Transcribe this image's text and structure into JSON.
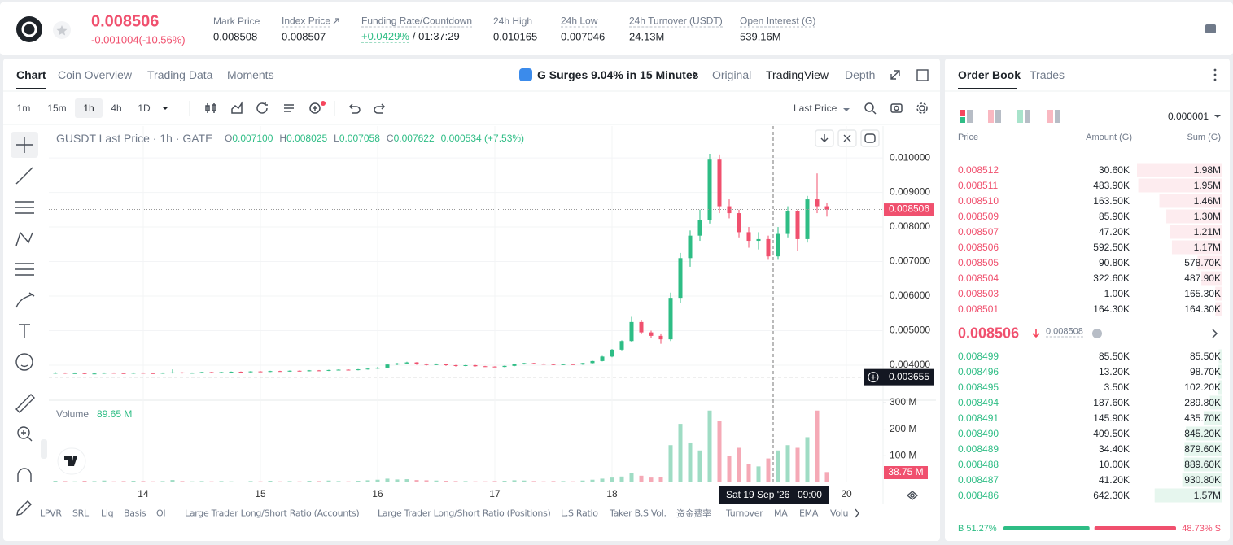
{
  "header": {
    "price": "0.008506",
    "change": "-0.001004(-10.56%)",
    "stats": [
      {
        "label": "Mark Price",
        "value": "0.008508"
      },
      {
        "label": "Index Price",
        "value": "0.008507"
      },
      {
        "label": "Funding Rate/Countdown",
        "value": "+0.0429%",
        "countdown": "/ 01:37:29"
      },
      {
        "label": "24h High",
        "value": "0.010165"
      },
      {
        "label": "24h Low",
        "value": "0.007046"
      },
      {
        "label": "24h Turnover (USDT)",
        "value": "24.13M"
      },
      {
        "label": "Open Interest (G)",
        "value": "539.16M"
      }
    ]
  },
  "chart_tabs": [
    "Chart",
    "Coin Overview",
    "Trading Data",
    "Moments"
  ],
  "news": "G Surges 9.04% in 15 Minutes",
  "view_tabs": [
    "Original",
    "TradingView",
    "Depth"
  ],
  "intervals": [
    "1m",
    "15m",
    "1h",
    "4h",
    "1D"
  ],
  "price_type": "Last Price",
  "legend": {
    "symbol": "GUSDT Last Price · 1h · GATE",
    "ohlc": [
      {
        "label": "O",
        "value": "0.007100"
      },
      {
        "label": "H",
        "value": "0.008025"
      },
      {
        "label": "L",
        "value": "0.007058"
      },
      {
        "label": "C",
        "value": "0.007622"
      }
    ],
    "change": "0.000534 (+7.53%)"
  },
  "volume_legend": {
    "label": "Volume",
    "value": "89.65 M"
  },
  "chart_data": {
    "type": "candlestick",
    "up_color": "#2ebd85",
    "down_color": "#f0506e",
    "volume_up_color": "#9fdcc4",
    "volume_down_color": "#f5a9b6",
    "grid": true,
    "xlim": [
      4.67,
      175.5
    ],
    "xticks": [
      {
        "value": 24,
        "label": "14"
      },
      {
        "value": 48,
        "label": "15"
      },
      {
        "value": 72,
        "label": "16"
      },
      {
        "value": 96,
        "label": "17"
      },
      {
        "value": 120,
        "label": "18"
      },
      {
        "value": 168,
        "label": "20"
      }
    ],
    "ylim": [
      0.00303,
      0.01092
    ],
    "yticks": [
      {
        "value": 0.004,
        "label": "0.004000"
      },
      {
        "value": 0.005,
        "label": "0.005000"
      },
      {
        "value": 0.006,
        "label": "0.006000"
      },
      {
        "value": 0.007,
        "label": "0.007000"
      },
      {
        "value": 0.008,
        "label": "0.008000"
      },
      {
        "value": 0.009,
        "label": "0.009000"
      },
      {
        "value": 0.01,
        "label": "0.010000"
      }
    ],
    "volume_ylim": [
      0,
      309
    ],
    "volume_yticks": [
      {
        "value": 100,
        "label": "100 M"
      },
      {
        "value": 200,
        "label": "200 M"
      },
      {
        "value": 300,
        "label": "300 M"
      }
    ],
    "candles": [
      [
        6,
        0.00377,
        0.0038,
        0.00375,
        0.00378,
        6
      ],
      [
        8,
        0.00378,
        0.00379,
        0.00375,
        0.00376,
        5
      ],
      [
        10,
        0.00376,
        0.00379,
        0.00375,
        0.00377,
        4
      ],
      [
        12,
        0.00377,
        0.00378,
        0.00374,
        0.00375,
        6
      ],
      [
        14,
        0.00375,
        0.00377,
        0.00374,
        0.00376,
        5
      ],
      [
        16,
        0.00376,
        0.00379,
        0.00375,
        0.00378,
        7
      ],
      [
        18,
        0.00378,
        0.00379,
        0.00376,
        0.00377,
        4
      ],
      [
        20,
        0.00377,
        0.00378,
        0.00375,
        0.00376,
        5
      ],
      [
        22,
        0.00376,
        0.00379,
        0.00375,
        0.00378,
        6
      ],
      [
        24,
        0.00378,
        0.00379,
        0.00376,
        0.00377,
        5
      ],
      [
        26,
        0.00377,
        0.00378,
        0.00375,
        0.00376,
        4
      ],
      [
        28,
        0.00376,
        0.00379,
        0.00375,
        0.00378,
        5
      ],
      [
        30,
        0.00378,
        0.00388,
        0.00376,
        0.00379,
        9
      ],
      [
        32,
        0.00379,
        0.0038,
        0.00376,
        0.00377,
        5
      ],
      [
        34,
        0.00377,
        0.00379,
        0.00376,
        0.00378,
        4
      ],
      [
        36,
        0.00378,
        0.00381,
        0.00377,
        0.0038,
        5
      ],
      [
        38,
        0.0038,
        0.00381,
        0.00378,
        0.00379,
        4
      ],
      [
        40,
        0.00379,
        0.00381,
        0.00378,
        0.0038,
        5
      ],
      [
        42,
        0.0038,
        0.00382,
        0.00379,
        0.00381,
        4
      ],
      [
        44,
        0.00381,
        0.00382,
        0.00379,
        0.0038,
        3
      ],
      [
        46,
        0.0038,
        0.00383,
        0.00379,
        0.00382,
        5
      ],
      [
        48,
        0.00382,
        0.00383,
        0.0038,
        0.00381,
        4
      ],
      [
        50,
        0.00381,
        0.00384,
        0.0038,
        0.00383,
        6
      ],
      [
        52,
        0.00383,
        0.00384,
        0.00381,
        0.00382,
        4
      ],
      [
        54,
        0.00382,
        0.00385,
        0.00381,
        0.00384,
        5
      ],
      [
        56,
        0.00384,
        0.00385,
        0.00382,
        0.00383,
        4
      ],
      [
        58,
        0.00383,
        0.00386,
        0.00382,
        0.00385,
        6
      ],
      [
        60,
        0.00385,
        0.00386,
        0.00383,
        0.00384,
        5
      ],
      [
        62,
        0.00384,
        0.00387,
        0.00383,
        0.00386,
        7
      ],
      [
        64,
        0.00386,
        0.00388,
        0.00385,
        0.00387,
        5
      ],
      [
        66,
        0.00387,
        0.00388,
        0.00385,
        0.00386,
        4
      ],
      [
        68,
        0.00386,
        0.00389,
        0.00385,
        0.00388,
        6
      ],
      [
        70,
        0.00388,
        0.00391,
        0.00387,
        0.0039,
        8
      ],
      [
        72,
        0.0039,
        0.00395,
        0.00389,
        0.00393,
        10
      ],
      [
        74,
        0.00393,
        0.00404,
        0.00392,
        0.00402,
        14
      ],
      [
        76,
        0.00402,
        0.00407,
        0.004,
        0.00405,
        11
      ],
      [
        78,
        0.00405,
        0.0041,
        0.00403,
        0.00408,
        12
      ],
      [
        80,
        0.00408,
        0.00409,
        0.00401,
        0.00403,
        9
      ],
      [
        82,
        0.00403,
        0.00405,
        0.00399,
        0.00401,
        8
      ],
      [
        84,
        0.00401,
        0.00405,
        0.004,
        0.00403,
        7
      ],
      [
        86,
        0.00403,
        0.00404,
        0.00398,
        0.004,
        6
      ],
      [
        88,
        0.004,
        0.00401,
        0.00396,
        0.00398,
        5
      ],
      [
        90,
        0.00398,
        0.00401,
        0.00397,
        0.004,
        5
      ],
      [
        92,
        0.004,
        0.00401,
        0.00396,
        0.00397,
        4
      ],
      [
        94,
        0.00397,
        0.00398,
        0.00395,
        0.00396,
        4
      ],
      [
        96,
        0.00396,
        0.00397,
        0.00394,
        0.00395,
        5
      ],
      [
        98,
        0.00395,
        0.00399,
        0.00394,
        0.00398,
        6
      ],
      [
        100,
        0.00398,
        0.00404,
        0.00397,
        0.00403,
        8
      ],
      [
        102,
        0.00403,
        0.00407,
        0.00402,
        0.00406,
        7
      ],
      [
        104,
        0.00406,
        0.00407,
        0.00403,
        0.00404,
        5
      ],
      [
        106,
        0.00404,
        0.00405,
        0.00402,
        0.00403,
        4
      ],
      [
        108,
        0.00403,
        0.00404,
        0.004,
        0.00401,
        5
      ],
      [
        110,
        0.00401,
        0.00404,
        0.004,
        0.00403,
        5
      ],
      [
        112,
        0.00403,
        0.00404,
        0.00401,
        0.00402,
        4
      ],
      [
        114,
        0.00402,
        0.00407,
        0.00401,
        0.00406,
        7
      ],
      [
        116,
        0.00406,
        0.00413,
        0.00405,
        0.00412,
        10
      ],
      [
        118,
        0.00412,
        0.00427,
        0.00411,
        0.00425,
        14
      ],
      [
        120,
        0.00425,
        0.00447,
        0.00423,
        0.00445,
        18
      ],
      [
        122,
        0.00445,
        0.00472,
        0.00443,
        0.0047,
        22
      ],
      [
        124,
        0.0047,
        0.0054,
        0.00468,
        0.00525,
        35
      ],
      [
        126,
        0.00525,
        0.0053,
        0.0049,
        0.00495,
        25
      ],
      [
        128,
        0.00495,
        0.005,
        0.0048,
        0.00485,
        18
      ],
      [
        130,
        0.00485,
        0.00492,
        0.00462,
        0.00475,
        20
      ],
      [
        132,
        0.00475,
        0.0061,
        0.0047,
        0.00595,
        140
      ],
      [
        134,
        0.00595,
        0.00725,
        0.0058,
        0.0071,
        220
      ],
      [
        136,
        0.0071,
        0.0079,
        0.00685,
        0.00775,
        150
      ],
      [
        138,
        0.00775,
        0.0085,
        0.0076,
        0.0082,
        120
      ],
      [
        140,
        0.0082,
        0.01012,
        0.0081,
        0.00995,
        270
      ],
      [
        142,
        0.00995,
        0.0101,
        0.0084,
        0.0086,
        230
      ],
      [
        144,
        0.0086,
        0.0088,
        0.00825,
        0.0084,
        100
      ],
      [
        146,
        0.0084,
        0.0085,
        0.0077,
        0.00785,
        130
      ],
      [
        148,
        0.00785,
        0.008,
        0.0074,
        0.0076,
        70
      ],
      [
        150,
        0.0076,
        0.00785,
        0.00735,
        0.00765,
        60
      ],
      [
        152,
        0.00765,
        0.00775,
        0.00705,
        0.00715,
        90
      ],
      [
        154,
        0.00715,
        0.008,
        0.00705,
        0.0078,
        120
      ],
      [
        156,
        0.0078,
        0.0086,
        0.0077,
        0.00845,
        140
      ],
      [
        158,
        0.00845,
        0.0085,
        0.0073,
        0.00765,
        130
      ],
      [
        160,
        0.00765,
        0.0089,
        0.00755,
        0.0088,
        170
      ],
      [
        162,
        0.0088,
        0.00955,
        0.0084,
        0.0086,
        270
      ],
      [
        164,
        0.0086,
        0.0087,
        0.0083,
        0.008506,
        38.75
      ]
    ],
    "last_price": 0.008506,
    "last_volume_label": "38.75 M",
    "crosshair": {
      "x": 153,
      "y": 0.003655,
      "date": "Sat 19 Sep '26",
      "time": "09:00"
    }
  },
  "bottom_tabs": [
    "LPVR",
    "SRL",
    "Liq",
    "Basis",
    "OI",
    "Large Trader Long/Short Ratio (Accounts)",
    "Large Trader Long/Short Ratio (Positions)",
    "L.S Ratio",
    "Taker B.S Vol.",
    "资金费率",
    "Turnover",
    "MA",
    "EMA",
    "Volu"
  ],
  "order_book": {
    "tabs": [
      "Order Book",
      "Trades"
    ],
    "precision": "0.000001",
    "columns": [
      "Price",
      "Amount (G)",
      "Sum (G)"
    ],
    "asks": {
      "prices": [
        "0.008512",
        "0.008511",
        "0.008510",
        "0.008509",
        "0.008507",
        "0.008506",
        "0.008505",
        "0.008504",
        "0.008503",
        "0.008501"
      ],
      "amounts": [
        "30.60K",
        "483.90K",
        "163.50K",
        "85.90K",
        "47.20K",
        "592.50K",
        "90.80K",
        "322.60K",
        "1.00K",
        "164.30K"
      ],
      "sums": [
        1980000,
        1950000,
        1460000,
        1300000,
        1210000,
        1170000,
        578700,
        487900,
        165300,
        164300
      ],
      "sum_labels": [
        "1.98M",
        "1.95M",
        "1.46M",
        "1.30M",
        "1.21M",
        "1.17M",
        "578.70K",
        "487.90K",
        "165.30K",
        "164.30K"
      ]
    },
    "last_price": "0.008506",
    "mark_price": "0.008508",
    "bids": {
      "prices": [
        "0.008499",
        "0.008496",
        "0.008495",
        "0.008494",
        "0.008491",
        "0.008490",
        "0.008489",
        "0.008488",
        "0.008487",
        "0.008486"
      ],
      "amounts": [
        "85.50K",
        "13.20K",
        "3.50K",
        "187.60K",
        "145.90K",
        "409.50K",
        "34.40K",
        "10.00K",
        "41.20K",
        "642.30K"
      ],
      "sums": [
        85500,
        98700,
        102200,
        289800,
        435700,
        845200,
        879600,
        889600,
        930800,
        1570000
      ],
      "sum_labels": [
        "85.50K",
        "98.70K",
        "102.20K",
        "289.80K",
        "435.70K",
        "845.20K",
        "879.60K",
        "889.60K",
        "930.80K",
        "1.57M"
      ]
    },
    "buy": 51.27,
    "buy_label": "B 51.27%",
    "sell": 48.73,
    "sell_label": "48.73% S"
  }
}
